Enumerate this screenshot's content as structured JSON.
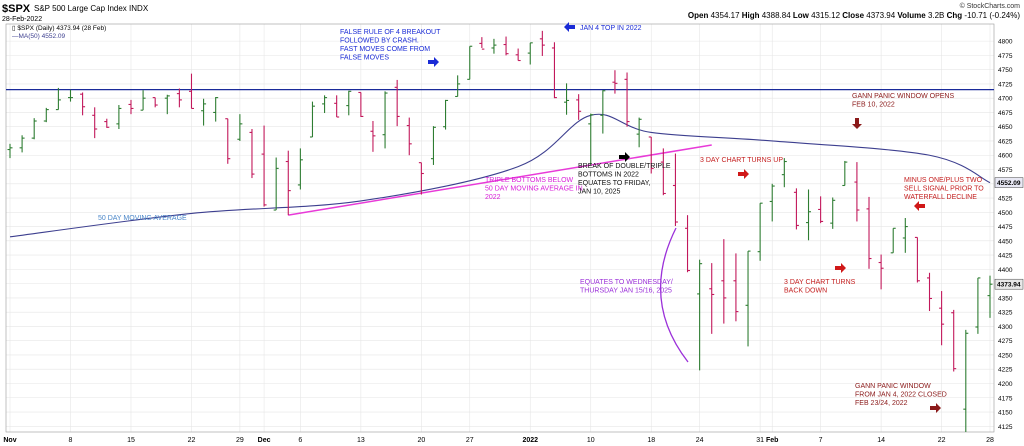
{
  "header": {
    "symbol": "$SPX",
    "name": "S&P 500 Large Cap Index",
    "exchange": "INDX",
    "date": "28-Feb-2022",
    "credit": "© StockCharts.com",
    "ohlc": [
      {
        "label": "Open",
        "value": "4354.17"
      },
      {
        "label": "High",
        "value": "4388.84"
      },
      {
        "label": "Low",
        "value": "4315.12"
      },
      {
        "label": "Close",
        "value": "4373.94"
      },
      {
        "label": "Volume",
        "value": "3.2B"
      },
      {
        "label": "Chg",
        "value": "-10.71 (-0.24%)"
      }
    ],
    "legend_price": "$SPX (Daily) 4373.94 (28 Feb)",
    "legend_ma": "MA(50) 4552.09"
  },
  "chart_data": {
    "type": "ohlc",
    "ylim": [
      4115,
      4830
    ],
    "y_ticks": [
      4125,
      4150,
      4175,
      4200,
      4225,
      4250,
      4275,
      4300,
      4325,
      4350,
      4375,
      4400,
      4425,
      4450,
      4475,
      4500,
      4525,
      4550,
      4575,
      4600,
      4625,
      4650,
      4675,
      4700,
      4725,
      4750,
      4775,
      4800
    ],
    "x_labels": [
      "Nov",
      "8",
      "15",
      "22",
      "29",
      "Dec",
      "6",
      "13",
      "20",
      "27",
      "2022",
      "10",
      "18",
      "24",
      "31",
      "Feb",
      "7",
      "14",
      "22",
      "28"
    ],
    "last_price_tag": "4373.94",
    "ma_tag": "4552.09",
    "bars": [
      {
        "date": "2021-11-01",
        "o": 4610,
        "h": 4620,
        "l": 4595,
        "c": 4613
      },
      {
        "date": "2021-11-02",
        "o": 4613,
        "h": 4635,
        "l": 4605,
        "c": 4630
      },
      {
        "date": "2021-11-03",
        "o": 4630,
        "h": 4665,
        "l": 4628,
        "c": 4660
      },
      {
        "date": "2021-11-04",
        "o": 4660,
        "h": 4683,
        "l": 4658,
        "c": 4680
      },
      {
        "date": "2021-11-05",
        "o": 4680,
        "h": 4718,
        "l": 4680,
        "c": 4697
      },
      {
        "date": "2021-11-08",
        "o": 4701,
        "h": 4715,
        "l": 4694,
        "c": 4701
      },
      {
        "date": "2021-11-09",
        "o": 4707,
        "h": 4710,
        "l": 4670,
        "c": 4685
      },
      {
        "date": "2021-11-10",
        "o": 4670,
        "h": 4684,
        "l": 4630,
        "c": 4646
      },
      {
        "date": "2021-11-11",
        "o": 4659,
        "h": 4664,
        "l": 4648,
        "c": 4649
      },
      {
        "date": "2021-11-12",
        "o": 4655,
        "h": 4688,
        "l": 4646,
        "c": 4682
      },
      {
        "date": "2021-11-15",
        "o": 4689,
        "h": 4697,
        "l": 4672,
        "c": 4682
      },
      {
        "date": "2021-11-16",
        "o": 4679,
        "h": 4714,
        "l": 4679,
        "c": 4700
      },
      {
        "date": "2021-11-17",
        "o": 4701,
        "h": 4701,
        "l": 4684,
        "c": 4688
      },
      {
        "date": "2021-11-18",
        "o": 4700,
        "h": 4706,
        "l": 4672,
        "c": 4704
      },
      {
        "date": "2021-11-19",
        "o": 4708,
        "h": 4717,
        "l": 4684,
        "c": 4697
      },
      {
        "date": "2021-11-22",
        "o": 4712,
        "h": 4743,
        "l": 4682,
        "c": 4682
      },
      {
        "date": "2021-11-23",
        "o": 4678,
        "h": 4699,
        "l": 4652,
        "c": 4690
      },
      {
        "date": "2021-11-24",
        "o": 4675,
        "h": 4702,
        "l": 4659,
        "c": 4701
      },
      {
        "date": "2021-11-26",
        "o": 4664,
        "h": 4664,
        "l": 4585,
        "c": 4594
      },
      {
        "date": "2021-11-29",
        "o": 4628,
        "h": 4672,
        "l": 4625,
        "c": 4655
      },
      {
        "date": "2021-11-30",
        "o": 4640,
        "h": 4646,
        "l": 4560,
        "c": 4567
      },
      {
        "date": "2021-12-01",
        "o": 4602,
        "h": 4652,
        "l": 4510,
        "c": 4513
      },
      {
        "date": "2021-12-02",
        "o": 4504,
        "h": 4596,
        "l": 4504,
        "c": 4577
      },
      {
        "date": "2021-12-03",
        "o": 4589,
        "h": 4608,
        "l": 4495,
        "c": 4538
      },
      {
        "date": "2021-12-06",
        "o": 4548,
        "h": 4612,
        "l": 4540,
        "c": 4592
      },
      {
        "date": "2021-12-07",
        "o": 4632,
        "h": 4694,
        "l": 4632,
        "c": 4686
      },
      {
        "date": "2021-12-08",
        "o": 4690,
        "h": 4705,
        "l": 4674,
        "c": 4701
      },
      {
        "date": "2021-12-09",
        "o": 4691,
        "h": 4705,
        "l": 4667,
        "c": 4667
      },
      {
        "date": "2021-12-10",
        "o": 4687,
        "h": 4713,
        "l": 4670,
        "c": 4712
      },
      {
        "date": "2021-12-13",
        "o": 4710,
        "h": 4710,
        "l": 4667,
        "c": 4668
      },
      {
        "date": "2021-12-14",
        "o": 4642,
        "h": 4660,
        "l": 4606,
        "c": 4634
      },
      {
        "date": "2021-12-15",
        "o": 4636,
        "h": 4712,
        "l": 4612,
        "c": 4709
      },
      {
        "date": "2021-12-16",
        "o": 4719,
        "h": 4732,
        "l": 4651,
        "c": 4668
      },
      {
        "date": "2021-12-17",
        "o": 4652,
        "h": 4666,
        "l": 4600,
        "c": 4620
      },
      {
        "date": "2021-12-20",
        "o": 4587,
        "h": 4587,
        "l": 4531,
        "c": 4568
      },
      {
        "date": "2021-12-21",
        "o": 4594,
        "h": 4651,
        "l": 4583,
        "c": 4649
      },
      {
        "date": "2021-12-22",
        "o": 4650,
        "h": 4697,
        "l": 4645,
        "c": 4696
      },
      {
        "date": "2021-12-23",
        "o": 4703,
        "h": 4740,
        "l": 4703,
        "c": 4725
      },
      {
        "date": "2021-12-27",
        "o": 4733,
        "h": 4791,
        "l": 4733,
        "c": 4791
      },
      {
        "date": "2021-12-28",
        "o": 4796,
        "h": 4807,
        "l": 4788,
        "c": 4786
      },
      {
        "date": "2021-12-29",
        "o": 4788,
        "h": 4804,
        "l": 4778,
        "c": 4793
      },
      {
        "date": "2021-12-30",
        "o": 4794,
        "h": 4808,
        "l": 4775,
        "c": 4778
      },
      {
        "date": "2021-12-31",
        "o": 4776,
        "h": 4787,
        "l": 4766,
        "c": 4766
      },
      {
        "date": "2022-01-03",
        "o": 4779,
        "h": 4797,
        "l": 4759,
        "c": 4797
      },
      {
        "date": "2022-01-04",
        "o": 4804,
        "h": 4818,
        "l": 4774,
        "c": 4793
      },
      {
        "date": "2022-01-05",
        "o": 4788,
        "h": 4798,
        "l": 4700,
        "c": 4701
      },
      {
        "date": "2022-01-06",
        "o": 4693,
        "h": 4726,
        "l": 4671,
        "c": 4696
      },
      {
        "date": "2022-01-07",
        "o": 4697,
        "h": 4707,
        "l": 4662,
        "c": 4677
      },
      {
        "date": "2022-01-10",
        "o": 4655,
        "h": 4673,
        "l": 4582,
        "c": 4671
      },
      {
        "date": "2022-01-11",
        "o": 4670,
        "h": 4714,
        "l": 4638,
        "c": 4713
      },
      {
        "date": "2022-01-12",
        "o": 4728,
        "h": 4749,
        "l": 4708,
        "c": 4726
      },
      {
        "date": "2022-01-13",
        "o": 4733,
        "h": 4745,
        "l": 4650,
        "c": 4659
      },
      {
        "date": "2022-01-14",
        "o": 4637,
        "h": 4666,
        "l": 4614,
        "c": 4663
      },
      {
        "date": "2022-01-18",
        "o": 4632,
        "h": 4632,
        "l": 4568,
        "c": 4577
      },
      {
        "date": "2022-01-19",
        "o": 4588,
        "h": 4612,
        "l": 4530,
        "c": 4533
      },
      {
        "date": "2022-01-20",
        "o": 4547,
        "h": 4603,
        "l": 4476,
        "c": 4483
      },
      {
        "date": "2022-01-21",
        "o": 4472,
        "h": 4495,
        "l": 4395,
        "c": 4398
      },
      {
        "date": "2022-01-24",
        "o": 4357,
        "h": 4417,
        "l": 4223,
        "c": 4410
      },
      {
        "date": "2022-01-25",
        "o": 4366,
        "h": 4411,
        "l": 4287,
        "c": 4356
      },
      {
        "date": "2022-01-26",
        "o": 4380,
        "h": 4453,
        "l": 4305,
        "c": 4350
      },
      {
        "date": "2022-01-27",
        "o": 4380,
        "h": 4428,
        "l": 4309,
        "c": 4326
      },
      {
        "date": "2022-01-28",
        "o": 4337,
        "h": 4432,
        "l": 4265,
        "c": 4432
      },
      {
        "date": "2022-01-31",
        "o": 4431,
        "h": 4516,
        "l": 4415,
        "c": 4516
      },
      {
        "date": "2022-02-01",
        "o": 4519,
        "h": 4550,
        "l": 4484,
        "c": 4546
      },
      {
        "date": "2022-02-02",
        "o": 4566,
        "h": 4595,
        "l": 4544,
        "c": 4589
      },
      {
        "date": "2022-02-03",
        "o": 4535,
        "h": 4542,
        "l": 4470,
        "c": 4477
      },
      {
        "date": "2022-02-04",
        "o": 4482,
        "h": 4540,
        "l": 4451,
        "c": 4501
      },
      {
        "date": "2022-02-07",
        "o": 4505,
        "h": 4528,
        "l": 4481,
        "c": 4484
      },
      {
        "date": "2022-02-08",
        "o": 4481,
        "h": 4526,
        "l": 4471,
        "c": 4521
      },
      {
        "date": "2022-02-09",
        "o": 4547,
        "h": 4590,
        "l": 4547,
        "c": 4588
      },
      {
        "date": "2022-02-10",
        "o": 4553,
        "h": 4588,
        "l": 4484,
        "c": 4504
      },
      {
        "date": "2022-02-11",
        "o": 4506,
        "h": 4527,
        "l": 4401,
        "c": 4419
      },
      {
        "date": "2022-02-14",
        "o": 4412,
        "h": 4426,
        "l": 4365,
        "c": 4402
      },
      {
        "date": "2022-02-15",
        "o": 4429,
        "h": 4472,
        "l": 4429,
        "c": 4472
      },
      {
        "date": "2022-02-16",
        "o": 4455,
        "h": 4490,
        "l": 4429,
        "c": 4475
      },
      {
        "date": "2022-02-17",
        "o": 4456,
        "h": 4456,
        "l": 4377,
        "c": 4380
      },
      {
        "date": "2022-02-18",
        "o": 4385,
        "h": 4394,
        "l": 4327,
        "c": 4349
      },
      {
        "date": "2022-02-22",
        "o": 4332,
        "h": 4362,
        "l": 4267,
        "c": 4304
      },
      {
        "date": "2022-02-23",
        "o": 4324,
        "h": 4329,
        "l": 4221,
        "c": 4226
      },
      {
        "date": "2022-02-24",
        "o": 4155,
        "h": 4294,
        "l": 4115,
        "c": 4288
      },
      {
        "date": "2022-02-25",
        "o": 4299,
        "h": 4385,
        "l": 4287,
        "c": 4385
      },
      {
        "date": "2022-02-28",
        "o": 4354,
        "h": 4389,
        "l": 4315,
        "c": 4374
      }
    ],
    "ma50": [
      {
        "date": "2021-11-01",
        "v": 4457
      },
      {
        "date": "2021-11-22",
        "v": 4498
      },
      {
        "date": "2021-12-13",
        "v": 4520
      },
      {
        "date": "2021-12-31",
        "v": 4580
      },
      {
        "date": "2022-01-10",
        "v": 4670
      },
      {
        "date": "2022-01-18",
        "v": 4640
      },
      {
        "date": "2022-02-01",
        "v": 4625
      },
      {
        "date": "2022-02-18",
        "v": 4600
      },
      {
        "date": "2022-02-28",
        "v": 4552
      }
    ],
    "resistance_level": 4715,
    "trendline": {
      "from": {
        "date": "2021-12-03",
        "v": 4495
      },
      "to": {
        "date": "2022-01-25",
        "v": 4618
      }
    },
    "annotations": [
      {
        "id": "false-rule",
        "color": "#1a2bd6",
        "lines": [
          "FALSE RULE OF 4 BREAKOUT",
          "FOLLOWED BY CRASH.",
          "FAST MOVES COME FROM",
          "FALSE MOVES"
        ]
      },
      {
        "id": "jan4-top",
        "color": "#1a2bd6",
        "lines": [
          "JAN 4 TOP IN 2022"
        ]
      },
      {
        "id": "ma-label",
        "color": "#4a86c8",
        "lines": [
          "50 DAY MOVING AVERAGE"
        ]
      },
      {
        "id": "triple-bottoms",
        "color": "#d81ed8",
        "lines": [
          "TRIPLE BOTTOMS BELOW",
          "50 DAY MOVING AVERAGE IN",
          "2022"
        ]
      },
      {
        "id": "break-double",
        "color": "#111111",
        "lines": [
          "BREAK OF DOUBLE/TRIPLE",
          "BOTTOMS IN 2022",
          "EQUATES TO FRIDAY,",
          "JAN 10, 2025"
        ]
      },
      {
        "id": "equates-wed",
        "color": "#9b30d9",
        "lines": [
          "EQUATES TO WEDNESDAY/",
          "THURSDAY JAN 15/16, 2025"
        ]
      },
      {
        "id": "3day-up",
        "color": "#c41e1e",
        "lines": [
          "3 DAY CHART TURNS UP"
        ]
      },
      {
        "id": "3day-down",
        "color": "#c41e1e",
        "lines": [
          "3 DAY CHART TURNS",
          "BACK DOWN"
        ]
      },
      {
        "id": "gann-opens",
        "color": "#8b1a1a",
        "lines": [
          "GANN PANIC WINDOW OPENS",
          "FEB 10, 2022"
        ]
      },
      {
        "id": "minus-one",
        "color": "#c41e1e",
        "lines": [
          "MINUS ONE/PLUS TWO",
          "SELL SIGNAL PRIOR TO",
          "WATERFALL DECLINE"
        ]
      },
      {
        "id": "gann-closed",
        "color": "#8b1a1a",
        "lines": [
          "GANN PANIC WINDOW",
          "FROM JAN 4, 2022 CLOSED",
          "FEB 23/24, 2022"
        ]
      }
    ]
  },
  "colors": {
    "up": "#2e7d32",
    "down": "#c2185b",
    "ma": "#3d3f8f",
    "resistance": "#1a2a9a",
    "trendline": "#e83ad8",
    "grid": "#e6e6e6",
    "arrow_blue": "#1a2bd6",
    "arrow_red": "#d01818",
    "arrow_dark_red": "#8b1a1a",
    "arrow_black": "#000000",
    "arc": "#9b30d9"
  }
}
